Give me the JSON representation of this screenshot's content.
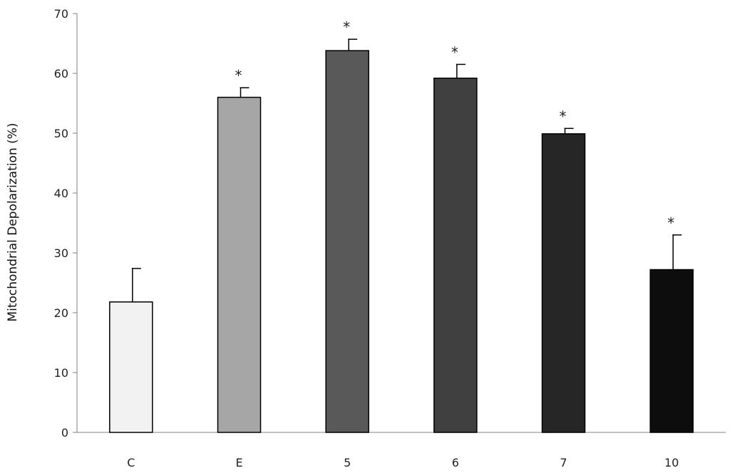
{
  "chart_data": {
    "type": "bar",
    "title": "",
    "xlabel": "",
    "ylabel": "Mitochondrial Depolarization (%)",
    "ylim": [
      0,
      70
    ],
    "yticks": [
      0,
      10,
      20,
      30,
      40,
      50,
      60,
      70
    ],
    "grid": false,
    "legend": "none",
    "categories": [
      "C",
      "E",
      "5",
      "6",
      "7",
      "10"
    ],
    "values": [
      21.8,
      56.0,
      63.8,
      59.2,
      49.9,
      27.2
    ],
    "errors": [
      5.6,
      1.6,
      1.9,
      2.3,
      0.9,
      5.8
    ],
    "significance": [
      "",
      "*",
      "*",
      "*",
      "*",
      "*"
    ],
    "colors": [
      "#f2f2f2",
      "#a6a6a6",
      "#595959",
      "#404040",
      "#262626",
      "#0d0d0d"
    ]
  }
}
